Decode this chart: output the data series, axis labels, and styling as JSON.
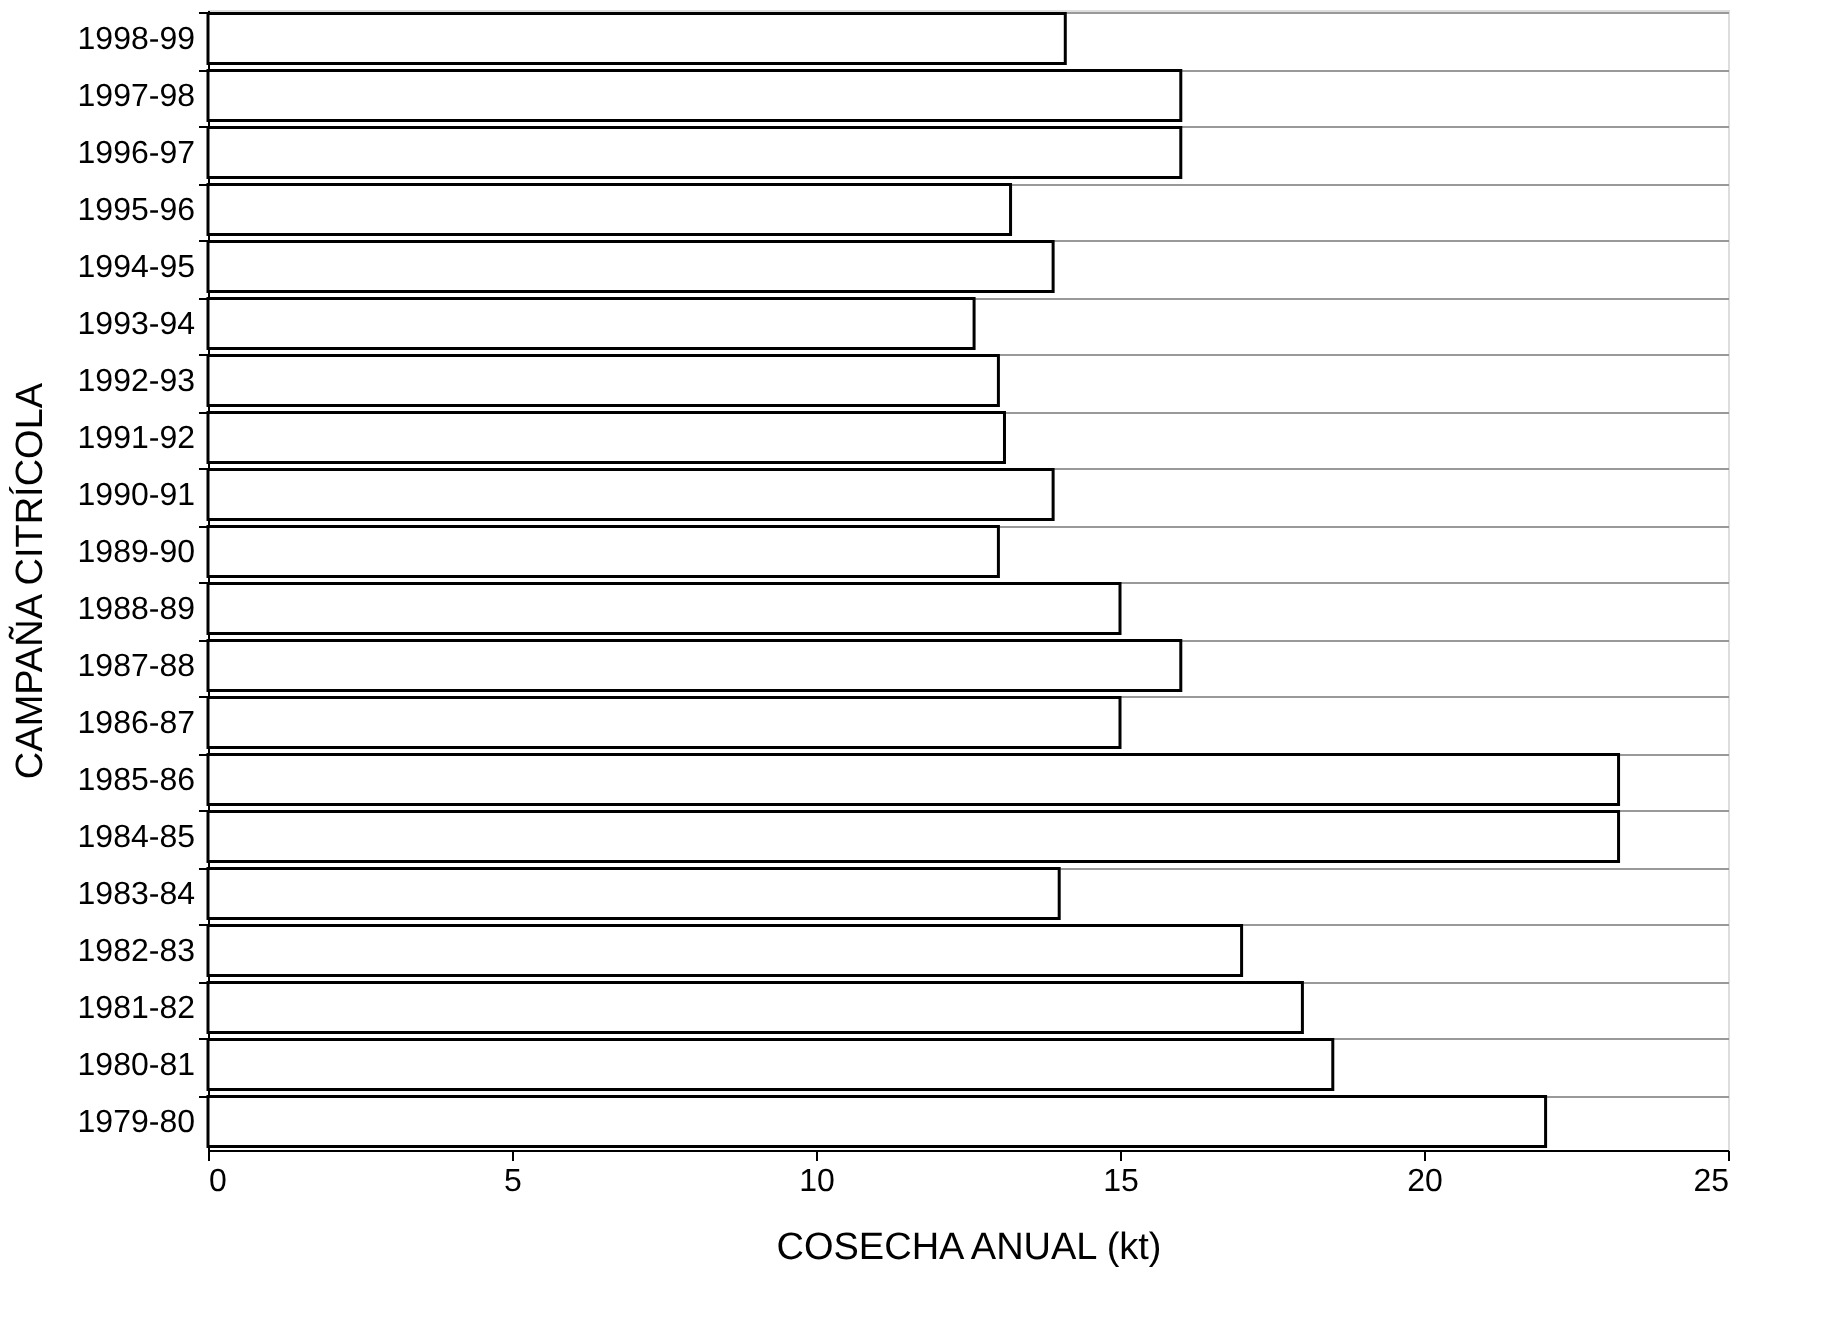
{
  "chart_data": {
    "type": "bar",
    "orientation": "horizontal",
    "xlabel": "COSECHA ANUAL (kt)",
    "ylabel": "CAMPAÑA CITRÍCOLA",
    "categories": [
      "1998-99",
      "1997-98",
      "1996-97",
      "1995-96",
      "1994-95",
      "1993-94",
      "1992-93",
      "1991-92",
      "1990-91",
      "1989-90",
      "1988-89",
      "1987-88",
      "1986-87",
      "1985-86",
      "1984-85",
      "1983-84",
      "1982-83",
      "1981-82",
      "1980-81",
      "1979-80"
    ],
    "values": [
      14.1,
      16,
      16,
      13.2,
      13.9,
      12.6,
      13.0,
      13.1,
      13.9,
      13.0,
      15,
      16,
      15,
      23.2,
      23.2,
      14,
      17,
      18,
      18.5,
      22
    ],
    "color": "#ffffff",
    "xlim": [
      0,
      25
    ],
    "xticks": [
      0,
      5,
      10,
      15,
      20,
      25
    ],
    "grid": "y"
  }
}
